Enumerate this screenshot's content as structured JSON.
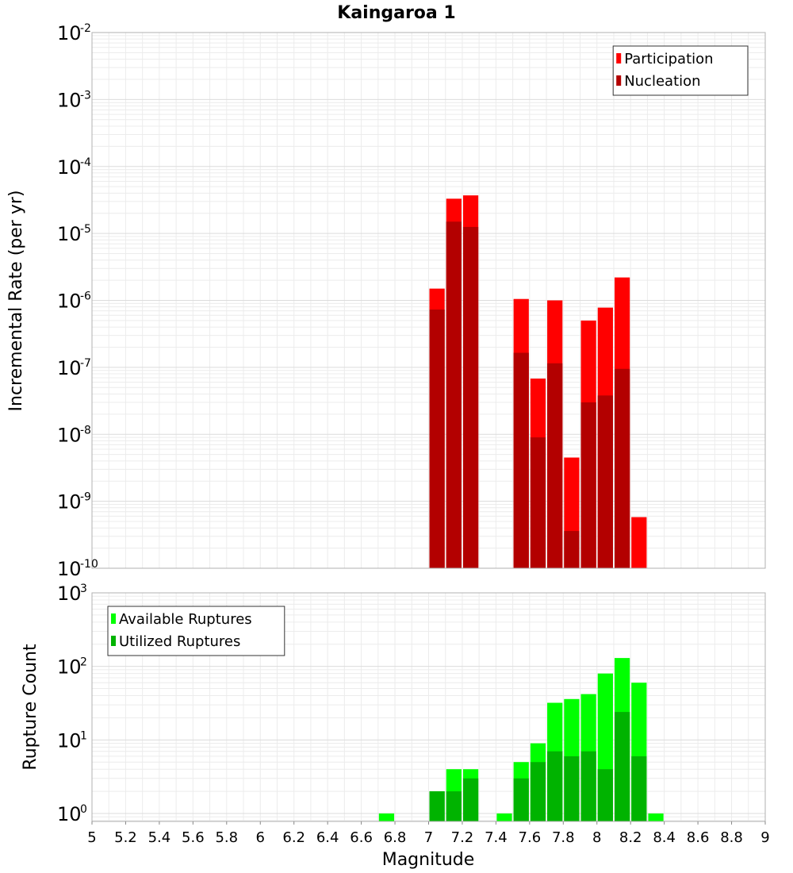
{
  "chart_data": [
    {
      "type": "bar",
      "title": "Kaingaroa 1",
      "xlabel": "",
      "ylabel": "Incremental Rate (per yr)",
      "y_scale": "log",
      "ylim": [
        1e-10,
        0.01
      ],
      "xlim": [
        5,
        9
      ],
      "y_ticks": [
        {
          "base": "10",
          "exp": "-2"
        },
        {
          "base": "10",
          "exp": "-3"
        },
        {
          "base": "10",
          "exp": "-4"
        },
        {
          "base": "10",
          "exp": "-5"
        },
        {
          "base": "10",
          "exp": "-6"
        },
        {
          "base": "10",
          "exp": "-7"
        },
        {
          "base": "10",
          "exp": "-8"
        },
        {
          "base": "10",
          "exp": "-9"
        },
        {
          "base": "10",
          "exp": "-10"
        }
      ],
      "grid": true,
      "legend_position": "top-right",
      "x": [
        7.05,
        7.15,
        7.25,
        7.55,
        7.65,
        7.75,
        7.85,
        7.95,
        8.05,
        8.15,
        8.25
      ],
      "series": [
        {
          "name": "Participation",
          "color": "#ff0000",
          "values": [
            1.5e-06,
            3.3e-05,
            3.7e-05,
            1.05e-06,
            6.8e-08,
            1e-06,
            4.5e-09,
            5e-07,
            7.8e-07,
            2.2e-06,
            5.8e-10
          ]
        },
        {
          "name": "Nucleation",
          "color": "#b30000",
          "values": [
            7.3e-07,
            1.5e-05,
            1.25e-05,
            1.65e-07,
            9e-09,
            1.15e-07,
            3.6e-10,
            3e-08,
            3.8e-08,
            9.5e-08,
            null
          ]
        }
      ]
    },
    {
      "type": "bar",
      "title": "",
      "xlabel": "Magnitude",
      "ylabel": "Rupture Count",
      "y_scale": "log",
      "ylim": [
        0.78,
        1000
      ],
      "xlim": [
        5,
        9
      ],
      "x_ticks": [
        "5",
        "5.2",
        "5.4",
        "5.6",
        "5.8",
        "6",
        "6.2",
        "6.4",
        "6.6",
        "6.8",
        "7",
        "7.2",
        "7.4",
        "7.6",
        "7.8",
        "8",
        "8.2",
        "8.4",
        "8.6",
        "8.8",
        "9"
      ],
      "y_ticks": [
        {
          "base": "10",
          "exp": "3"
        },
        {
          "base": "10",
          "exp": "2"
        },
        {
          "base": "10",
          "exp": "1"
        },
        {
          "base": "10",
          "exp": "0"
        }
      ],
      "grid": true,
      "legend_position": "top-left",
      "x": [
        6.75,
        7.05,
        7.15,
        7.25,
        7.45,
        7.55,
        7.65,
        7.75,
        7.85,
        7.95,
        8.05,
        8.15,
        8.25,
        8.35
      ],
      "series": [
        {
          "name": "Available Ruptures",
          "color": "#00ff00",
          "values": [
            1,
            2,
            4,
            4,
            1,
            5,
            9,
            32,
            36,
            42,
            80,
            130,
            60,
            1
          ]
        },
        {
          "name": "Utilized Ruptures",
          "color": "#00b300",
          "values": [
            null,
            2,
            2,
            3,
            null,
            3,
            5,
            7,
            6,
            7,
            4,
            24,
            6,
            null
          ]
        }
      ]
    }
  ]
}
